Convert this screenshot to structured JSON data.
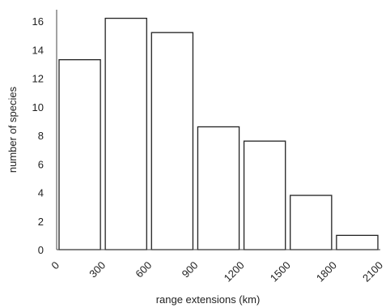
{
  "chart_data": {
    "type": "bar",
    "xlabel": "range extensions (km)",
    "ylabel": "number of species",
    "x_ticks": [
      "0",
      "300",
      "600",
      "900",
      "1200",
      "1500",
      "1800",
      "2100"
    ],
    "bins": [
      {
        "from": 0,
        "to": 300,
        "value": 13.3
      },
      {
        "from": 300,
        "to": 600,
        "value": 16.2
      },
      {
        "from": 600,
        "to": 900,
        "value": 15.2
      },
      {
        "from": 900,
        "to": 1200,
        "value": 8.6
      },
      {
        "from": 1200,
        "to": 1500,
        "value": 7.6
      },
      {
        "from": 1500,
        "to": 1800,
        "value": 3.8
      },
      {
        "from": 1800,
        "to": 2100,
        "value": 1.0
      }
    ],
    "values": [
      13.3,
      16.2,
      15.2,
      8.6,
      7.6,
      3.8,
      1.0
    ],
    "y_ticks": [
      "0",
      "2",
      "4",
      "6",
      "8",
      "10",
      "12",
      "14",
      "16"
    ],
    "ylim": [
      0,
      16.8
    ],
    "xlim": [
      0,
      2100
    ],
    "grid": false,
    "legend": "none"
  }
}
